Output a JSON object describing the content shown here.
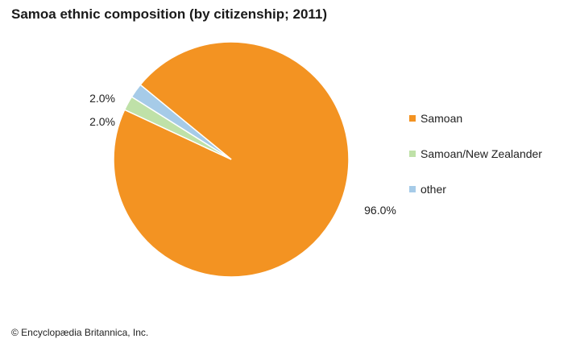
{
  "title": "Samoa ethnic composition (by citizenship; 2011)",
  "credit": "© Encyclopædia Britannica, Inc.",
  "chart_data": {
    "type": "pie",
    "title": "Samoa ethnic composition (by citizenship; 2011)",
    "slices": [
      {
        "name": "Samoan",
        "value": 96.0,
        "label": "96.0%",
        "color": "#f39322"
      },
      {
        "name": "Samoan/New Zealander",
        "value": 2.0,
        "label": "2.0%",
        "color": "#bfe1a8"
      },
      {
        "name": "other",
        "value": 2.0,
        "label": "2.0%",
        "color": "#a6cbe8"
      }
    ],
    "legend_placement": "right"
  }
}
